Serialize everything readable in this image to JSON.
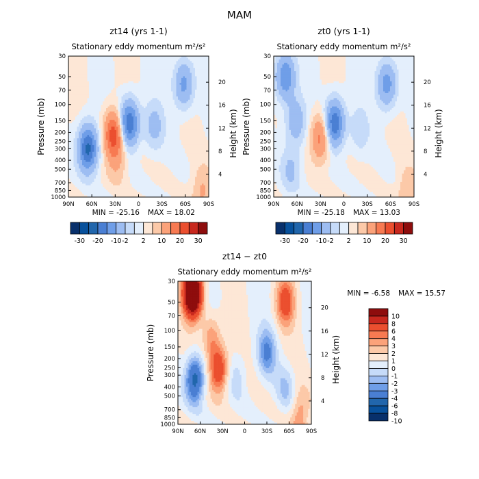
{
  "figure": {
    "title": "MAM"
  },
  "chart_data": [
    {
      "type": "heatmap",
      "title": "zt14 (yrs 1-1)",
      "subtitle": "Stationary eddy momentum",
      "units": "m²/s²",
      "xlabel": "",
      "ylabel": "Pressure (mb)",
      "ylabel_right": "Height (km)",
      "x_ticks": [
        "90N",
        "60N",
        "30N",
        "0",
        "30S",
        "60S",
        "90S"
      ],
      "x_values": [
        90,
        60,
        30,
        0,
        -30,
        -60,
        -90
      ],
      "xlim": [
        90,
        -90
      ],
      "y_ticks": [
        "30",
        "50",
        "70",
        "100",
        "150",
        "200",
        "250",
        "300",
        "400",
        "500",
        "700",
        "850",
        "1000"
      ],
      "y_values": [
        30,
        50,
        70,
        100,
        150,
        200,
        250,
        300,
        400,
        500,
        700,
        850,
        1000
      ],
      "ylim": [
        1000,
        30
      ],
      "height_ticks": [
        "4",
        "8",
        "12",
        "16",
        "20"
      ],
      "height_values": [
        4,
        8,
        12,
        16,
        20
      ],
      "min_label": "MIN = -25.16",
      "max_label": "MAX = 18.02",
      "min": -25.16,
      "max": 18.02,
      "levels": [
        -30,
        -25,
        -20,
        -15,
        -10,
        -5,
        -2,
        0,
        2,
        5,
        10,
        15,
        20,
        25,
        30
      ],
      "colorbar_labels": [
        "-30",
        "-20",
        "-10",
        "-2",
        "2",
        "10",
        "20",
        "30"
      ],
      "features": [
        {
          "lat": 65,
          "p": 300,
          "value": -22
        },
        {
          "lat": 32,
          "p": 210,
          "value": 18
        },
        {
          "lat": 12,
          "p": 160,
          "value": -20
        },
        {
          "lat": -20,
          "p": 170,
          "value": -7
        },
        {
          "lat": -58,
          "p": 60,
          "value": -12
        },
        {
          "lat": 28,
          "p": 400,
          "value": 5
        },
        {
          "lat": -82,
          "p": 850,
          "value": 6
        }
      ]
    },
    {
      "type": "heatmap",
      "title": "zt0 (yrs 1-1)",
      "subtitle": "Stationary eddy momentum",
      "units": "m²/s²",
      "xlabel": "",
      "ylabel": "Pressure (mb)",
      "ylabel_right": "Height (km)",
      "x_ticks": [
        "90N",
        "60N",
        "30N",
        "0",
        "30S",
        "60S",
        "90S"
      ],
      "x_values": [
        90,
        60,
        30,
        0,
        -30,
        -60,
        -90
      ],
      "xlim": [
        90,
        -90
      ],
      "y_ticks": [
        "30",
        "50",
        "70",
        "100",
        "150",
        "200",
        "250",
        "300",
        "400",
        "500",
        "700",
        "850",
        "1000"
      ],
      "y_values": [
        30,
        50,
        70,
        100,
        150,
        200,
        250,
        300,
        400,
        500,
        700,
        850,
        1000
      ],
      "ylim": [
        1000,
        30
      ],
      "height_ticks": [
        "4",
        "8",
        "12",
        "16",
        "20"
      ],
      "height_values": [
        4,
        8,
        12,
        16,
        20
      ],
      "min_label": "MIN = -25.18",
      "max_label": "MAX = 13.03",
      "min": -25.18,
      "max": 13.03,
      "levels": [
        -30,
        -25,
        -20,
        -15,
        -10,
        -5,
        -2,
        0,
        2,
        5,
        10,
        15,
        20,
        25,
        30
      ],
      "colorbar_labels": [
        "-30",
        "-20",
        "-10",
        "-2",
        "2",
        "10",
        "20",
        "30"
      ],
      "features": [
        {
          "lat": 75,
          "p": 50,
          "value": -15
        },
        {
          "lat": 62,
          "p": 150,
          "value": -9
        },
        {
          "lat": 30,
          "p": 230,
          "value": 12
        },
        {
          "lat": 12,
          "p": 160,
          "value": -20
        },
        {
          "lat": -55,
          "p": 60,
          "value": -13
        },
        {
          "lat": -20,
          "p": 190,
          "value": -4
        },
        {
          "lat": 68,
          "p": 500,
          "value": -6
        },
        {
          "lat": -82,
          "p": 850,
          "value": 5
        }
      ]
    },
    {
      "type": "heatmap",
      "title": "zt14 − zt0",
      "subtitle": "Stationary eddy momentum",
      "units": "m²/s²",
      "xlabel": "",
      "ylabel": "Pressure (mb)",
      "ylabel_right": "Height (km)",
      "x_ticks": [
        "90N",
        "60N",
        "30N",
        "0",
        "30S",
        "60S",
        "90S"
      ],
      "x_values": [
        90,
        60,
        30,
        0,
        -30,
        -60,
        -90
      ],
      "xlim": [
        90,
        -90
      ],
      "y_ticks": [
        "30",
        "50",
        "70",
        "100",
        "150",
        "200",
        "250",
        "300",
        "400",
        "500",
        "700",
        "850",
        "1000"
      ],
      "y_values": [
        30,
        50,
        70,
        100,
        150,
        200,
        250,
        300,
        400,
        500,
        700,
        850,
        1000
      ],
      "ylim": [
        1000,
        30
      ],
      "height_ticks": [
        "4",
        "8",
        "12",
        "16",
        "20"
      ],
      "height_values": [
        4,
        8,
        12,
        16,
        20
      ],
      "min_label": "MIN =   -6.58",
      "max_label": "MAX =  15.57",
      "min": -6.58,
      "max": 15.57,
      "levels": [
        -10,
        -8,
        -6,
        -4,
        -3,
        -2,
        -1,
        0,
        1,
        2,
        3,
        4,
        6,
        8,
        10
      ],
      "colorbar_labels": [
        "10",
        "8",
        "6",
        "4",
        "3",
        "2",
        "1",
        "0",
        "-1",
        "-2",
        "-3",
        "-4",
        "-6",
        "-8",
        "-10"
      ],
      "features": [
        {
          "lat": 70,
          "p": 40,
          "value": 15
        },
        {
          "lat": 67,
          "p": 330,
          "value": -7
        },
        {
          "lat": 35,
          "p": 260,
          "value": 6
        },
        {
          "lat": -30,
          "p": 170,
          "value": -4
        },
        {
          "lat": -55,
          "p": 50,
          "value": 5
        },
        {
          "lat": 45,
          "p": 120,
          "value": 3
        },
        {
          "lat": -55,
          "p": 400,
          "value": -2
        },
        {
          "lat": 10,
          "p": 300,
          "value": -1.5
        },
        {
          "lat": -75,
          "p": 800,
          "value": 3
        }
      ]
    }
  ],
  "colors": {
    "palette": [
      "#08306b",
      "#08519c",
      "#2166ac",
      "#4a7fd3",
      "#6f9ee8",
      "#9dbdf2",
      "#c6dbf9",
      "#e4effc",
      "#fde7d6",
      "#fcc9a8",
      "#fba27a",
      "#f77a52",
      "#eb4f2f",
      "#c8281e",
      "#8e0d0d"
    ]
  }
}
